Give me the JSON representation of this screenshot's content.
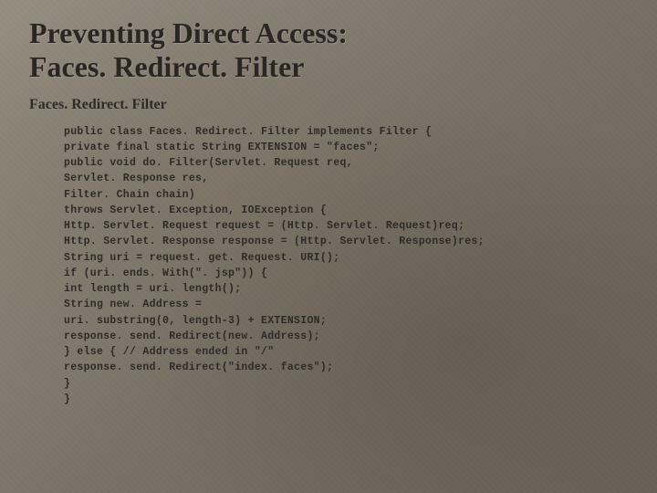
{
  "title_line1": "Preventing Direct Access:",
  "title_line2": "Faces. Redirect. Filter",
  "subtitle": "Faces. Redirect. Filter",
  "code_lines": [
    "public class Faces. Redirect. Filter implements Filter {",
    "private final static String EXTENSION = \"faces\";",
    "public void do. Filter(Servlet. Request req,",
    "Servlet. Response res,",
    "Filter. Chain chain)",
    "throws Servlet. Exception, IOException {",
    "Http. Servlet. Request request = (Http. Servlet. Request)req;",
    "Http. Servlet. Response response = (Http. Servlet. Response)res;",
    "String uri = request. get. Request. URI();",
    "if (uri. ends. With(\". jsp\")) {",
    "int length = uri. length();",
    "String new. Address =",
    "uri. substring(0, length-3) + EXTENSION;",
    "response. send. Redirect(new. Address);",
    "} else { // Address ended in \"/\"",
    "response. send. Redirect(\"index. faces\");",
    "}",
    "}"
  ],
  "colors": {
    "background_base": "#8a8378",
    "text_dark": "#2a2624",
    "text_body": "#2e2a27"
  },
  "typography": {
    "title_fontsize": 32,
    "subtitle_fontsize": 16,
    "code_fontsize": 11.5,
    "title_family": "Georgia",
    "code_family": "Courier New"
  }
}
